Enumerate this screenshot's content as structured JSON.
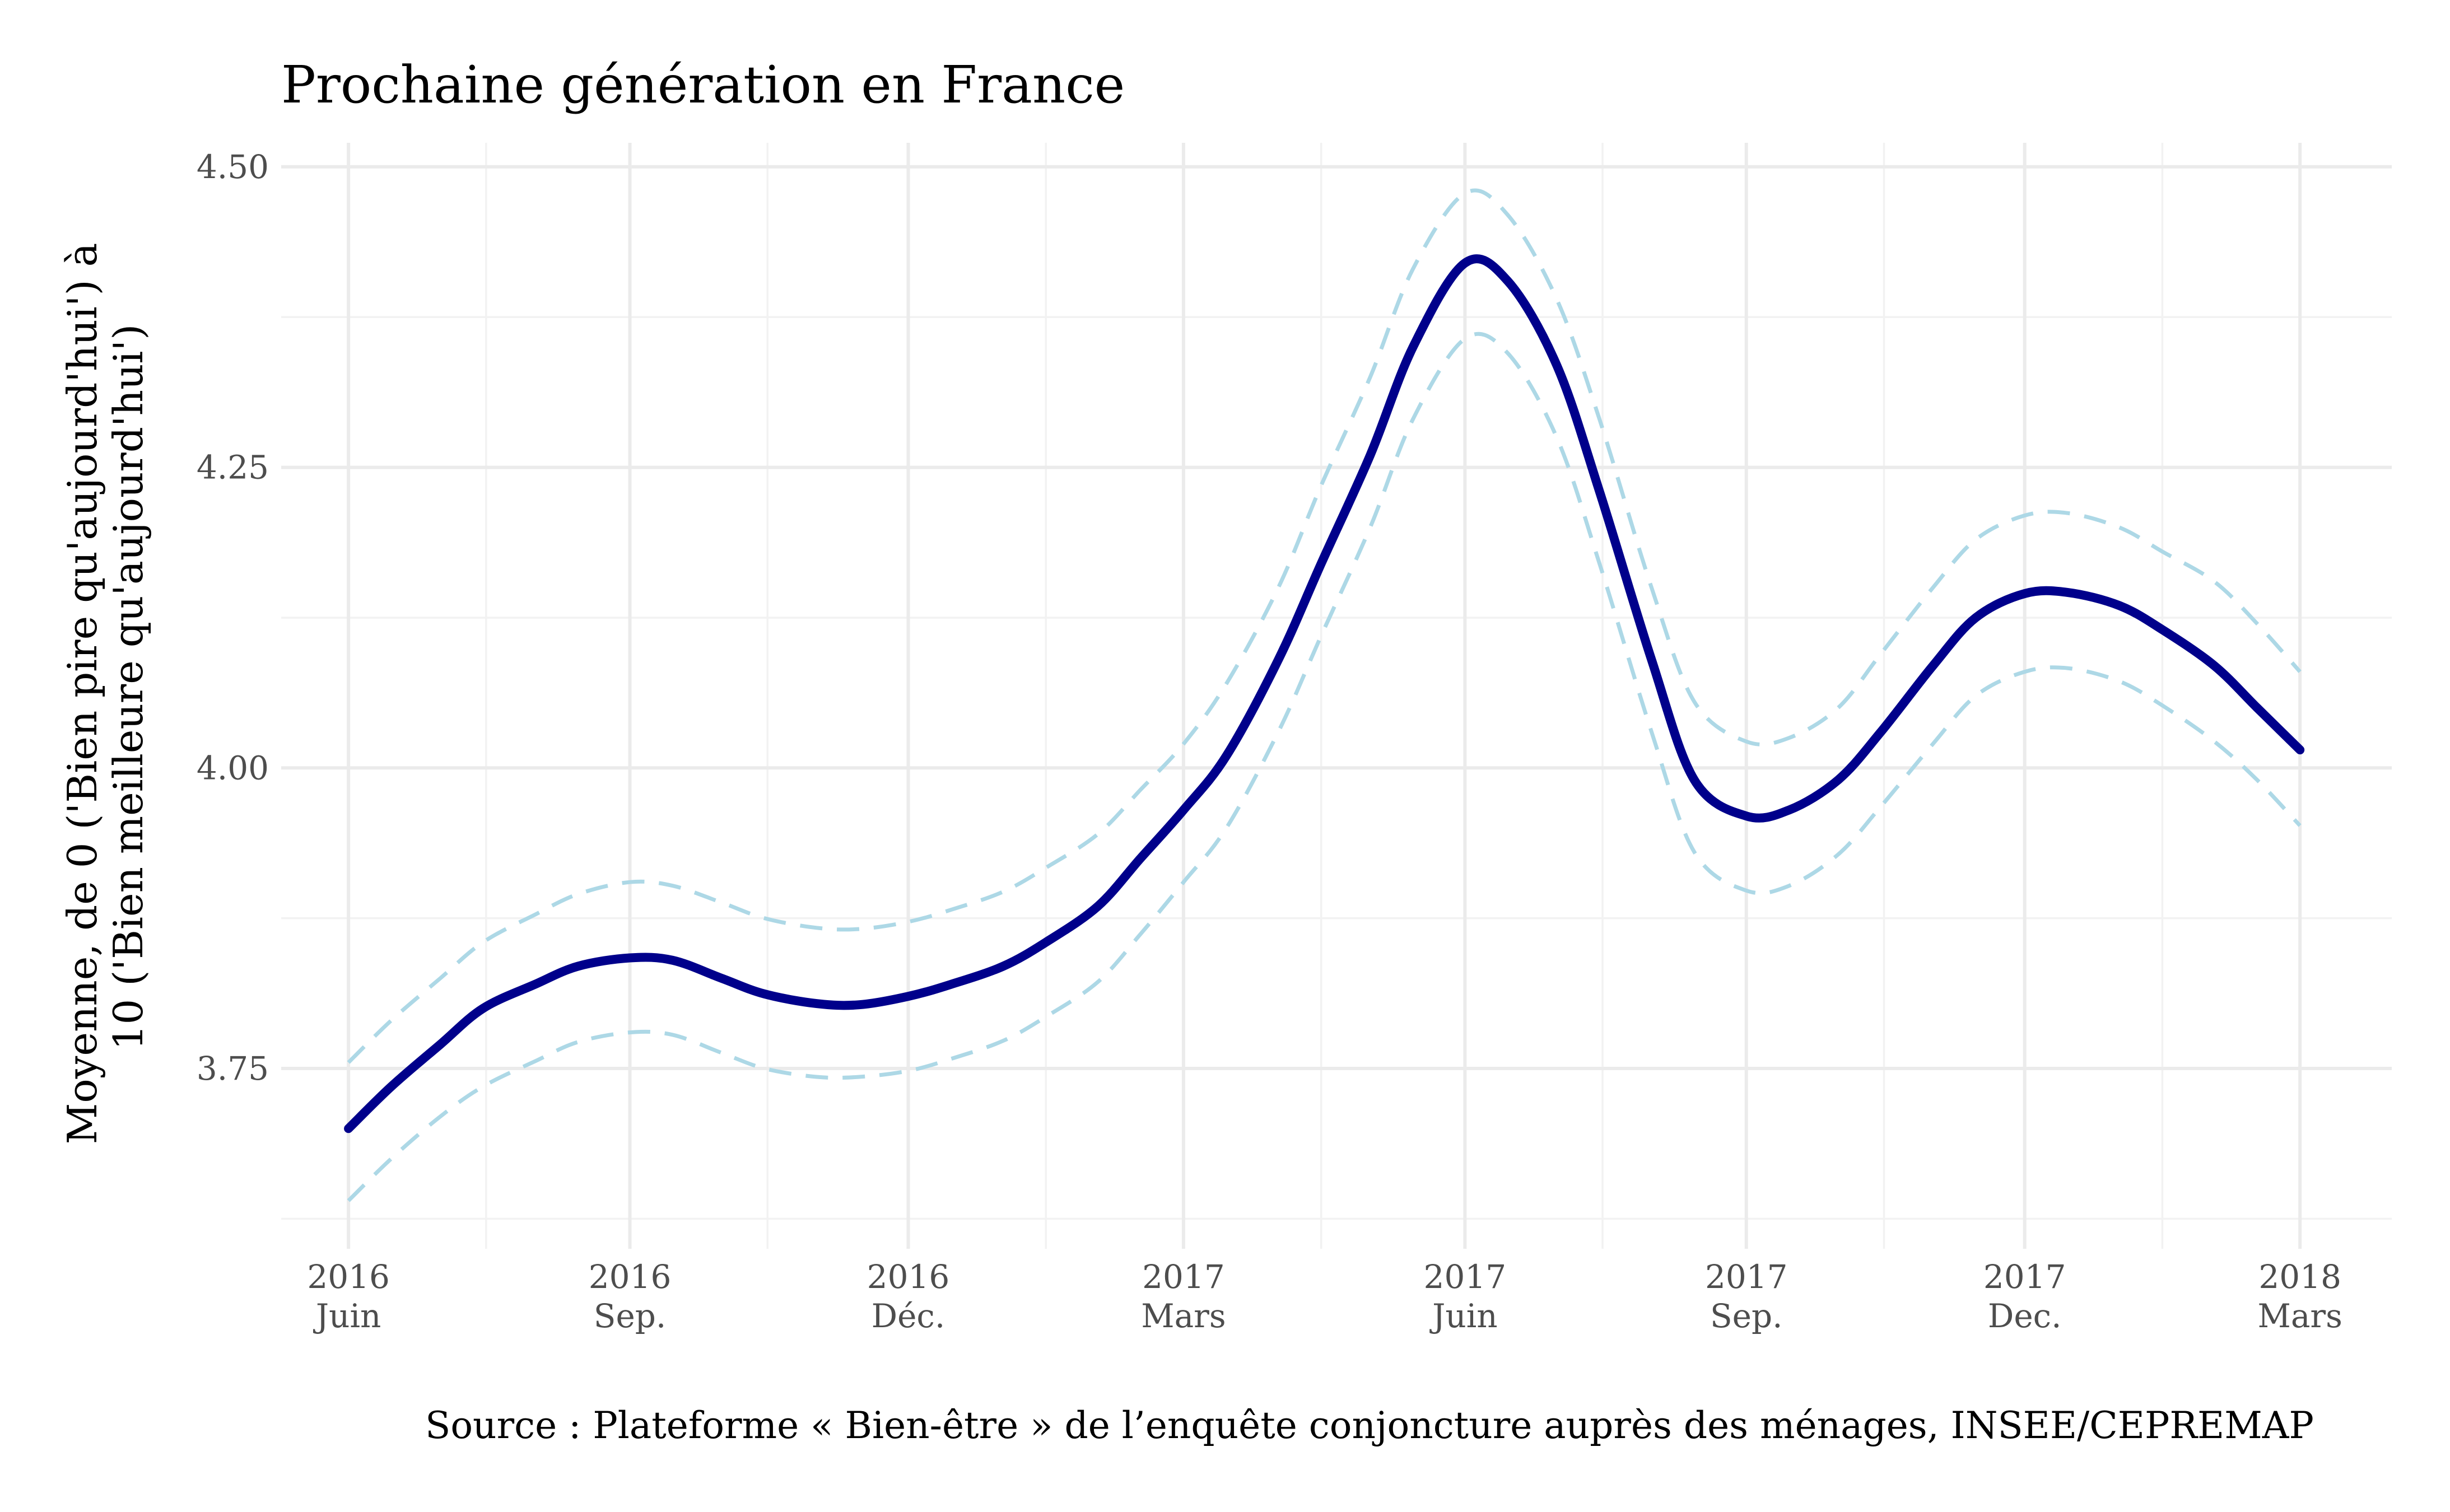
{
  "chart_data": {
    "type": "line",
    "title": "Prochaine génération en France",
    "xlabel": "",
    "ylabel": "Moyenne, de 0 ('Bien pire qu'aujourd'hui') à 10 ('Bien meilleure qu'aujourd'hui')",
    "ylabel_lines": [
      "Moyenne, de 0 ('Bien pire qu'aujourd'hui') à",
      "10 ('Bien meilleure qu'aujourd'hui')"
    ],
    "caption": "Source : Plateforme « Bien-être » de l’enquête conjoncture auprès des ménages, INSEE/CEPREMAP",
    "grid": true,
    "legend": "none",
    "ylim": [
      3.6,
      4.52
    ],
    "y_ticks": [
      {
        "value": 3.75,
        "label": "3.75"
      },
      {
        "value": 4.0,
        "label": "4.00"
      },
      {
        "value": 4.25,
        "label": "4.25"
      },
      {
        "value": 4.5,
        "label": "4.50"
      }
    ],
    "y_minor_ticks": [
      3.625,
      3.875,
      4.125,
      4.375
    ],
    "xlim": [
      "2016-05-10",
      "2018-03-31"
    ],
    "x_ticks": [
      {
        "date": "2016-06-01",
        "line1": "2016",
        "line2": "Juin"
      },
      {
        "date": "2016-09-01",
        "line1": "2016",
        "line2": "Sep."
      },
      {
        "date": "2016-12-01",
        "line1": "2016",
        "line2": "Déc."
      },
      {
        "date": "2017-03-01",
        "line1": "2017",
        "line2": "Mars"
      },
      {
        "date": "2017-06-01",
        "line1": "2017",
        "line2": "Juin"
      },
      {
        "date": "2017-09-01",
        "line1": "2017",
        "line2": "Sep."
      },
      {
        "date": "2017-12-01",
        "line1": "2017",
        "line2": "Dec."
      },
      {
        "date": "2018-03-01",
        "line1": "2018",
        "line2": "Mars"
      }
    ],
    "x_minor_ticks": [
      "2016-07-16",
      "2016-10-16",
      "2017-01-15",
      "2017-04-15",
      "2017-07-16",
      "2017-10-16",
      "2018-01-15"
    ],
    "series": [
      {
        "role": "estimate",
        "style": "solid",
        "color": "#00008b",
        "points": [
          [
            "2016-06-01",
            3.7
          ],
          [
            "2016-06-15",
            3.735
          ],
          [
            "2016-07-01",
            3.77
          ],
          [
            "2016-07-15",
            3.8
          ],
          [
            "2016-08-01",
            3.82
          ],
          [
            "2016-08-15",
            3.835
          ],
          [
            "2016-09-01",
            3.842
          ],
          [
            "2016-09-15",
            3.84
          ],
          [
            "2016-10-01",
            3.825
          ],
          [
            "2016-10-15",
            3.812
          ],
          [
            "2016-11-01",
            3.804
          ],
          [
            "2016-11-15",
            3.803
          ],
          [
            "2016-12-01",
            3.81
          ],
          [
            "2016-12-15",
            3.82
          ],
          [
            "2017-01-01",
            3.835
          ],
          [
            "2017-01-15",
            3.855
          ],
          [
            "2017-02-01",
            3.885
          ],
          [
            "2017-02-15",
            3.925
          ],
          [
            "2017-03-01",
            3.965
          ],
          [
            "2017-03-15",
            4.01
          ],
          [
            "2017-04-01",
            4.09
          ],
          [
            "2017-04-15",
            4.17
          ],
          [
            "2017-05-01",
            4.26
          ],
          [
            "2017-05-15",
            4.35
          ],
          [
            "2017-06-01",
            4.42
          ],
          [
            "2017-06-15",
            4.405
          ],
          [
            "2017-07-01",
            4.335
          ],
          [
            "2017-07-15",
            4.23
          ],
          [
            "2017-08-01",
            4.09
          ],
          [
            "2017-08-15",
            3.99
          ],
          [
            "2017-09-01",
            3.96
          ],
          [
            "2017-09-15",
            3.965
          ],
          [
            "2017-10-01",
            3.99
          ],
          [
            "2017-10-15",
            4.03
          ],
          [
            "2017-11-01",
            4.085
          ],
          [
            "2017-11-15",
            4.125
          ],
          [
            "2017-12-01",
            4.145
          ],
          [
            "2017-12-15",
            4.146
          ],
          [
            "2018-01-01",
            4.135
          ],
          [
            "2018-01-15",
            4.115
          ],
          [
            "2018-02-01",
            4.085
          ],
          [
            "2018-02-15",
            4.05
          ],
          [
            "2018-03-01",
            4.015
          ]
        ]
      },
      {
        "role": "upper bound",
        "style": "dashed",
        "color": "#add8e6",
        "points": [
          [
            "2016-06-01",
            3.755
          ],
          [
            "2016-06-15",
            3.79
          ],
          [
            "2016-07-01",
            3.825
          ],
          [
            "2016-07-15",
            3.855
          ],
          [
            "2016-08-01",
            3.878
          ],
          [
            "2016-08-15",
            3.895
          ],
          [
            "2016-09-01",
            3.905
          ],
          [
            "2016-09-15",
            3.902
          ],
          [
            "2016-10-01",
            3.888
          ],
          [
            "2016-10-15",
            3.875
          ],
          [
            "2016-11-01",
            3.867
          ],
          [
            "2016-11-15",
            3.866
          ],
          [
            "2016-12-01",
            3.872
          ],
          [
            "2016-12-15",
            3.882
          ],
          [
            "2017-01-01",
            3.897
          ],
          [
            "2017-01-15",
            3.917
          ],
          [
            "2017-02-01",
            3.945
          ],
          [
            "2017-02-15",
            3.982
          ],
          [
            "2017-03-01",
            4.02
          ],
          [
            "2017-03-15",
            4.07
          ],
          [
            "2017-04-01",
            4.15
          ],
          [
            "2017-04-15",
            4.235
          ],
          [
            "2017-05-01",
            4.325
          ],
          [
            "2017-05-15",
            4.415
          ],
          [
            "2017-06-01",
            4.478
          ],
          [
            "2017-06-15",
            4.46
          ],
          [
            "2017-07-01",
            4.39
          ],
          [
            "2017-07-15",
            4.29
          ],
          [
            "2017-08-01",
            4.15
          ],
          [
            "2017-08-15",
            4.055
          ],
          [
            "2017-09-01",
            4.022
          ],
          [
            "2017-09-15",
            4.025
          ],
          [
            "2017-10-01",
            4.05
          ],
          [
            "2017-10-15",
            4.095
          ],
          [
            "2017-11-01",
            4.15
          ],
          [
            "2017-11-15",
            4.19
          ],
          [
            "2017-12-01",
            4.21
          ],
          [
            "2017-12-15",
            4.212
          ],
          [
            "2018-01-01",
            4.2
          ],
          [
            "2018-01-15",
            4.18
          ],
          [
            "2018-02-01",
            4.155
          ],
          [
            "2018-02-15",
            4.12
          ],
          [
            "2018-03-01",
            4.08
          ]
        ]
      },
      {
        "role": "lower bound",
        "style": "dashed",
        "color": "#add8e6",
        "points": [
          [
            "2016-06-01",
            3.64
          ],
          [
            "2016-06-15",
            3.675
          ],
          [
            "2016-07-01",
            3.71
          ],
          [
            "2016-07-15",
            3.735
          ],
          [
            "2016-08-01",
            3.756
          ],
          [
            "2016-08-15",
            3.772
          ],
          [
            "2016-09-01",
            3.78
          ],
          [
            "2016-09-15",
            3.778
          ],
          [
            "2016-10-01",
            3.763
          ],
          [
            "2016-10-15",
            3.75
          ],
          [
            "2016-11-01",
            3.743
          ],
          [
            "2016-11-15",
            3.743
          ],
          [
            "2016-12-01",
            3.748
          ],
          [
            "2016-12-15",
            3.758
          ],
          [
            "2017-01-01",
            3.773
          ],
          [
            "2017-01-15",
            3.793
          ],
          [
            "2017-02-01",
            3.822
          ],
          [
            "2017-02-15",
            3.862
          ],
          [
            "2017-03-01",
            3.905
          ],
          [
            "2017-03-15",
            3.95
          ],
          [
            "2017-04-01",
            4.03
          ],
          [
            "2017-04-15",
            4.11
          ],
          [
            "2017-05-01",
            4.2
          ],
          [
            "2017-05-15",
            4.29
          ],
          [
            "2017-06-01",
            4.357
          ],
          [
            "2017-06-15",
            4.345
          ],
          [
            "2017-07-01",
            4.275
          ],
          [
            "2017-07-15",
            4.17
          ],
          [
            "2017-08-01",
            4.03
          ],
          [
            "2017-08-15",
            3.93
          ],
          [
            "2017-09-01",
            3.898
          ],
          [
            "2017-09-15",
            3.902
          ],
          [
            "2017-10-01",
            3.928
          ],
          [
            "2017-10-15",
            3.968
          ],
          [
            "2017-11-01",
            4.02
          ],
          [
            "2017-11-15",
            4.06
          ],
          [
            "2017-12-01",
            4.08
          ],
          [
            "2017-12-15",
            4.083
          ],
          [
            "2018-01-01",
            4.072
          ],
          [
            "2018-01-15",
            4.052
          ],
          [
            "2018-02-01",
            4.022
          ],
          [
            "2018-02-15",
            3.99
          ],
          [
            "2018-03-01",
            3.952
          ]
        ]
      }
    ]
  }
}
